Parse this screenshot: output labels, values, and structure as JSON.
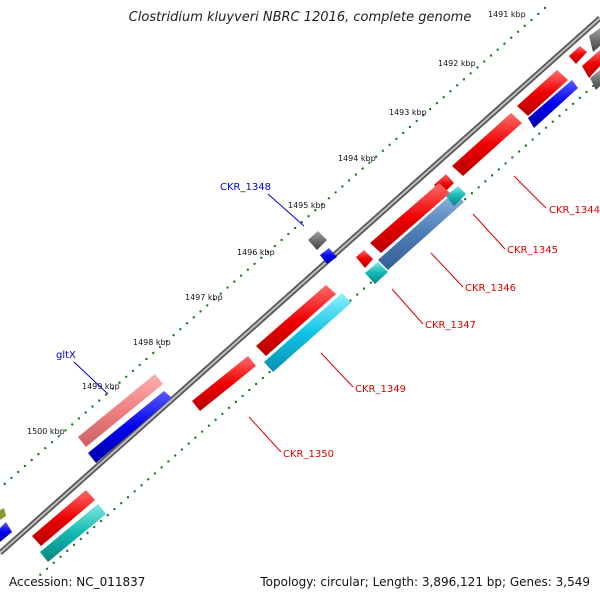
{
  "title": "Clostridium kluyveri NBRC 12016, complete genome",
  "accession": "Accession: NC_011837",
  "summary": "Topology: circular; Length: 3,896,121 bp; Genes: 3,549",
  "ticks": [
    "1491 kbp",
    "1492 kbp",
    "1493 kbp",
    "1494 kbp",
    "1495 kbp",
    "1496 kbp",
    "1497 kbp",
    "1498 kbp",
    "1499 kbp",
    "1500 kbp"
  ],
  "labels": {
    "CKR_1344": "CKR_1344",
    "CKR_1345": "CKR_1345",
    "CKR_1346": "CKR_1346",
    "CKR_1347": "CKR_1347",
    "CKR_1348": "CKR_1348",
    "CKR_1349": "CKR_1349",
    "CKR_1350": "CKR_1350",
    "gltX": "gltX"
  },
  "colors": {
    "forward_cds": "#ee0000",
    "reverse_cds": "#0000ee",
    "cyan_feature": "#00b8d8",
    "rna_feature": "#707070",
    "backbone": "#888888",
    "tick_dots": "#1a7a1a",
    "red_label": "#dd0000",
    "blue_label": "#0000dd"
  }
}
